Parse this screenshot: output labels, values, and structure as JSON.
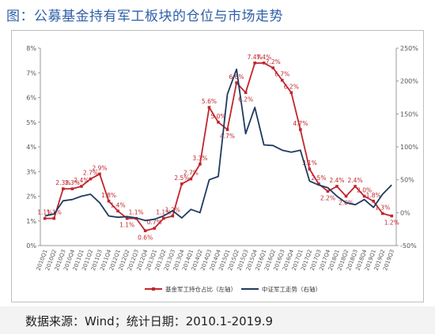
{
  "header": {
    "title": "图：公募基金持有军工板块的仓位与市场走势"
  },
  "footer": {
    "source": "数据来源：Wind；统计日期：2010.1-2019.9"
  },
  "chart_data": {
    "type": "line",
    "categories": [
      "2010Q1",
      "2010Q2",
      "2010Q3",
      "2010Q4",
      "2011Q1",
      "2011Q2",
      "2011Q3",
      "2011Q4",
      "2012Q1",
      "2012Q2",
      "2012Q3",
      "2012Q4",
      "2013Q1",
      "2013Q2",
      "2013Q3",
      "2013Q4",
      "2014Q1",
      "2014Q2",
      "2014Q3",
      "2014Q4",
      "2015Q1",
      "2015Q2",
      "2015Q3",
      "2015Q4",
      "2016Q1",
      "2016Q2",
      "2016Q3",
      "2016Q4",
      "2017Q1",
      "2017Q2",
      "2017Q3",
      "2017Q4",
      "2018Q1",
      "2018Q2",
      "2018Q3",
      "2018Q4",
      "2019Q1",
      "2019Q2",
      "2019Q3"
    ],
    "ylim_left": [
      0,
      8
    ],
    "ylim_right": [
      -50,
      250
    ],
    "left_ticks": [
      "0%",
      "1%",
      "2%",
      "3%",
      "4%",
      "5%",
      "6%",
      "7%",
      "8%"
    ],
    "right_ticks": [
      "-50%",
      "0%",
      "50%",
      "100%",
      "150%",
      "200%",
      "250%"
    ],
    "series": [
      {
        "name": "基金军工持仓占比（左轴）",
        "axis": "left",
        "color": "#c0262d",
        "values": [
          1.1,
          1.1,
          2.3,
          2.3,
          2.4,
          2.7,
          2.9,
          1.8,
          1.4,
          1.1,
          1.1,
          0.6,
          0.7,
          1.1,
          1.2,
          2.5,
          2.7,
          3.3,
          5.6,
          5.0,
          4.7,
          6.6,
          6.2,
          7.4,
          7.4,
          7.2,
          6.7,
          6.2,
          4.7,
          3.1,
          2.5,
          2.2,
          2.4,
          2.0,
          2.4,
          2.0,
          1.8,
          1.3,
          1.2
        ],
        "labels": [
          "1.1%",
          "1.1%",
          "2.3%",
          "2.3%",
          "2.4%",
          "2.7%",
          "2.9%",
          "1.8%",
          "1.4%",
          "1.1%",
          "1.1%",
          "0.6%",
          "0.7%",
          "1.1%",
          "1.2%",
          "2.5%",
          "2.7%",
          "3.3%",
          "5.6%",
          "5.0%",
          "4.7%",
          "6.6%",
          "6.2%",
          "7.4%",
          "7.4%",
          "7.2%",
          "6.7%",
          "6.2%",
          "4.7%",
          "3.1%",
          "2.5%",
          "2.2%",
          "2.4%",
          "2.0%",
          "2.4%",
          "2.0%",
          "1.8%",
          "1.3%",
          "1.2%"
        ]
      },
      {
        "name": "中证军工走势（右轴）",
        "axis": "right",
        "color": "#1f3a5f",
        "values": [
          -5,
          -2,
          18,
          20,
          25,
          28,
          15,
          -5,
          -7,
          -6,
          -8,
          -12,
          -10,
          -5,
          3,
          -8,
          5,
          0,
          50,
          55,
          180,
          218,
          120,
          160,
          103,
          102,
          95,
          92,
          95,
          48,
          42,
          38,
          25,
          15,
          12,
          20,
          8,
          28,
          42
        ]
      }
    ]
  }
}
